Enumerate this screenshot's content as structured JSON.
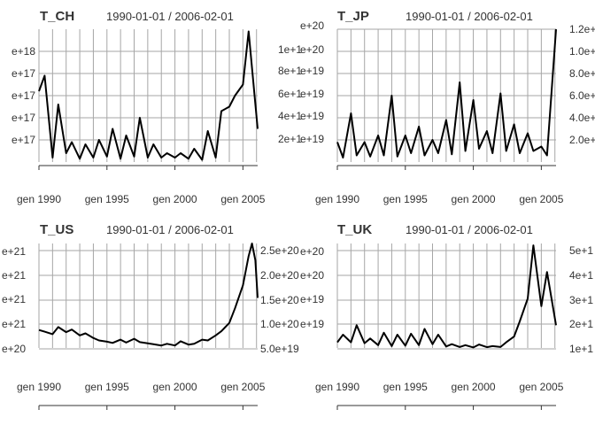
{
  "chart_data": [
    {
      "type": "line",
      "title": "T_CH",
      "date_range": "1990-01-01 / 2006-02-01",
      "x_tick_labels": [
        "gen 1990",
        "gen 1995",
        "gen 2000",
        "gen 2005"
      ],
      "x_ticks": [
        "1990-01",
        "1995-01",
        "2000-01",
        "2005-01"
      ],
      "x_range": [
        "1990-01",
        "2006-02"
      ],
      "y_axis_side": "left",
      "y_tick_labels": [
        "e+18",
        "e+17",
        "e+17",
        "e+17",
        "e+17"
      ],
      "y_ticks": [
        1e+18,
        8e+17,
        6e+17,
        4e+17,
        2e+17
      ],
      "ylim": [
        0,
        1.2e+18
      ],
      "grid": true,
      "x": [
        "1990-01",
        "1990-06",
        "1991-01",
        "1991-06",
        "1992-01",
        "1992-06",
        "1993-01",
        "1993-06",
        "1994-01",
        "1994-06",
        "1995-01",
        "1995-06",
        "1996-01",
        "1996-06",
        "1997-01",
        "1997-06",
        "1998-01",
        "1998-06",
        "1999-01",
        "1999-06",
        "2000-01",
        "2000-06",
        "2001-01",
        "2001-06",
        "2002-01",
        "2002-06",
        "2003-01",
        "2003-06",
        "2004-01",
        "2004-06",
        "2005-01",
        "2005-06",
        "2006-02"
      ],
      "values": [
        6.4e+17,
        7.8e+17,
        4e+16,
        5.2e+17,
        8e+16,
        1.8e+17,
        3e+16,
        1.6e+17,
        4e+16,
        2e+17,
        5e+16,
        3e+17,
        3e+16,
        2.4e+17,
        5e+16,
        4e+17,
        4e+16,
        1.6e+17,
        4e+16,
        8e+16,
        4e+16,
        8e+16,
        3e+16,
        1.2e+17,
        2e+16,
        2.8e+17,
        4e+16,
        4.6e+17,
        5e+17,
        6e+17,
        7e+17,
        1.18e+18,
        3e+17
      ]
    },
    {
      "type": "line",
      "title": "T_JP",
      "date_range": "1990-01-01 / 2006-02-01",
      "x_tick_labels": [
        "gen 1990",
        "gen 1995",
        "gen 2000",
        "gen 2005"
      ],
      "x_ticks": [
        "1990-01",
        "1995-01",
        "2000-01",
        "2005-01"
      ],
      "x_range": [
        "1990-01",
        "2006-02"
      ],
      "y_axis_side": "right",
      "y_tick_labels": [
        "1.2e+20",
        "1.0e+20",
        "8.0e+19",
        "6.0e+19",
        "4.0e+19",
        "2.0e+19"
      ],
      "y_ticks": [
        1.2e+20,
        1e+20,
        8e+19,
        6e+19,
        4e+19,
        2e+19
      ],
      "overlap_labels": [
        "e+20",
        "1e+1",
        "e+20",
        "8e+1",
        "e+19",
        "6e+1",
        "e+19",
        "4e+1",
        "e+19",
        "2e+1",
        "e+19"
      ],
      "ylim": [
        0,
        1.2e+20
      ],
      "grid": true,
      "x": [
        "1990-01",
        "1990-06",
        "1991-01",
        "1991-06",
        "1992-01",
        "1992-06",
        "1993-01",
        "1993-06",
        "1994-01",
        "1994-06",
        "1995-01",
        "1995-06",
        "1996-01",
        "1996-06",
        "1997-01",
        "1997-06",
        "1998-01",
        "1998-06",
        "1999-01",
        "1999-06",
        "2000-01",
        "2000-06",
        "2001-01",
        "2001-06",
        "2002-01",
        "2002-06",
        "2003-01",
        "2003-06",
        "2004-01",
        "2004-06",
        "2005-01",
        "2005-06",
        "2006-02"
      ],
      "values": [
        1.8e+19,
        4e+18,
        4.4e+19,
        6e+18,
        1.8e+19,
        5e+18,
        2.4e+19,
        6e+18,
        6e+19,
        5e+18,
        2.4e+19,
        8e+18,
        3.2e+19,
        6e+18,
        2e+19,
        8e+18,
        3.8e+19,
        7e+18,
        7.2e+19,
        1e+19,
        5.6e+19,
        1.2e+19,
        2.8e+19,
        8e+18,
        6.2e+19,
        1e+19,
        3.4e+19,
        8e+18,
        2.6e+19,
        1e+19,
        1.4e+19,
        6e+18,
        1.2e+20
      ]
    },
    {
      "type": "line",
      "title": "T_US",
      "date_range": "1990-01-01 / 2006-02-01",
      "x_tick_labels": [
        "gen 1990",
        "gen 1995",
        "gen 2000",
        "gen 2005"
      ],
      "x_ticks": [
        "1990-01",
        "1995-01",
        "2000-01",
        "2005-01"
      ],
      "x_range": [
        "1990-01",
        "2006-02"
      ],
      "y_axis_side": "right",
      "y_tick_labels": [
        "2.5e+20",
        "2.0e+20",
        "1.5e+20",
        "1.0e+20",
        "5.0e+19"
      ],
      "y_ticks": [
        2.5e+20,
        2e+20,
        1.5e+20,
        1e+20,
        5e+19
      ],
      "overlap_labels": [
        "e+21",
        "e+21",
        "e+21",
        "e+21",
        "e+20"
      ],
      "ylim": [
        0,
        2.5e+20
      ],
      "grid": true,
      "x": [
        "1990-01",
        "1990-06",
        "1991-01",
        "1991-06",
        "1992-01",
        "1992-06",
        "1993-01",
        "1993-06",
        "1994-01",
        "1994-06",
        "1995-01",
        "1995-06",
        "1996-01",
        "1996-06",
        "1997-01",
        "1997-06",
        "1998-01",
        "1998-06",
        "1999-01",
        "1999-06",
        "2000-01",
        "2000-06",
        "2001-01",
        "2001-06",
        "2002-01",
        "2002-06",
        "2003-01",
        "2003-06",
        "2004-01",
        "2004-06",
        "2005-01",
        "2005-06",
        "2005-09",
        "2005-12",
        "2006-02"
      ],
      "values": [
        4.3e+19,
        3.9e+19,
        3.3e+19,
        5e+19,
        3.8e+19,
        4.4e+19,
        3e+19,
        3.5e+19,
        2.4e+19,
        1.8e+19,
        1.5e+19,
        1.2e+19,
        2e+19,
        1.3e+19,
        2.2e+19,
        1.4e+19,
        1.1e+19,
        9e+18,
        6e+18,
        1e+19,
        6e+18,
        1.6e+19,
        8e+18,
        1e+19,
        2e+19,
        1.8e+19,
        3e+19,
        4e+19,
        6e+19,
        9.5e+19,
        1.5e+20,
        2.2e+20,
        2.55e+20,
        2.1e+20,
        1.2e+20
      ]
    },
    {
      "type": "line",
      "title": "T_UK",
      "date_range": "1990-01-01 / 2006-02-01",
      "x_tick_labels": [
        "gen 1990",
        "gen 1995",
        "gen 2000",
        "gen 2005"
      ],
      "x_ticks": [
        "1990-01",
        "1995-01",
        "2000-01",
        "2005-01"
      ],
      "x_range": [
        "1990-01",
        "2006-02"
      ],
      "y_axis_side": "right",
      "y_tick_labels": [
        "5e+1",
        "4e+1",
        "3e+1",
        "2e+1",
        "1e+1"
      ],
      "y_ticks": [
        5e+19,
        4e+19,
        3e+19,
        2e+19,
        1e+19
      ],
      "overlap_labels": [
        "e+20",
        "e+20",
        "e+19",
        "e+19"
      ],
      "ylim": [
        0,
        5.5e+19
      ],
      "grid": true,
      "x": [
        "1990-01",
        "1990-06",
        "1991-01",
        "1991-06",
        "1992-01",
        "1992-06",
        "1993-01",
        "1993-06",
        "1994-01",
        "1994-06",
        "1995-01",
        "1995-06",
        "1996-01",
        "1996-06",
        "1997-01",
        "1997-06",
        "1998-01",
        "1998-06",
        "1999-01",
        "1999-06",
        "2000-01",
        "2000-06",
        "2001-01",
        "2001-06",
        "2002-01",
        "2002-06",
        "2003-01",
        "2003-06",
        "2004-01",
        "2004-06",
        "2005-01",
        "2005-06",
        "2006-02"
      ],
      "values": [
        3e+18,
        7e+18,
        3e+18,
        1.2e+19,
        2.5e+18,
        5e+18,
        1.5e+18,
        8e+18,
        1e+18,
        7e+18,
        1.2e+18,
        7.5e+18,
        1.5e+18,
        1e+19,
        2e+18,
        7e+18,
        8e+17,
        2e+18,
        5e+17,
        1.5e+18,
        3e+17,
        1.8e+18,
        4e+17,
        1e+18,
        5e+17,
        3e+18,
        6e+18,
        1.4e+19,
        2.6e+19,
        5.4e+19,
        2.2e+19,
        4e+19,
        1.2e+19
      ]
    }
  ]
}
